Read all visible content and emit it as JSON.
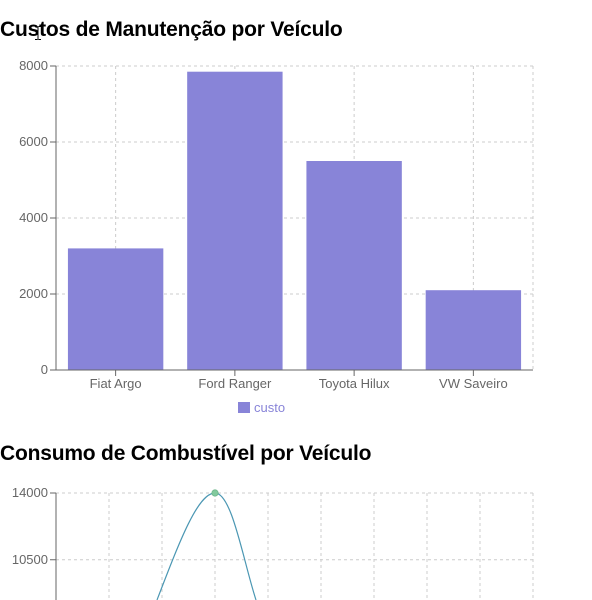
{
  "colors": {
    "bar": "#8884d8",
    "line": "#4b97b3",
    "dot": "#82ca9d",
    "grid": "#cccccc",
    "axis": "#666666",
    "text": "#666666"
  },
  "chart_data": [
    {
      "type": "bar",
      "title": "Custos de Manutenção por Veículo",
      "categories": [
        "Fiat Argo",
        "Ford Ranger",
        "Toyota Hilux",
        "VW Saveiro"
      ],
      "series": [
        {
          "name": "custo",
          "values": [
            3200,
            7850,
            5500,
            2100
          ]
        }
      ],
      "ylim": [
        0,
        8000
      ],
      "yticks": [
        0,
        2000,
        4000,
        6000,
        8000
      ],
      "grid": true,
      "legend": "bottom-center"
    },
    {
      "type": "line",
      "title": "Consumo de Combustível por Veículo",
      "ylim": [
        0,
        14000
      ],
      "yticks_visible": [
        10500,
        14000
      ],
      "peak_value": 14000,
      "grid": true
    }
  ]
}
